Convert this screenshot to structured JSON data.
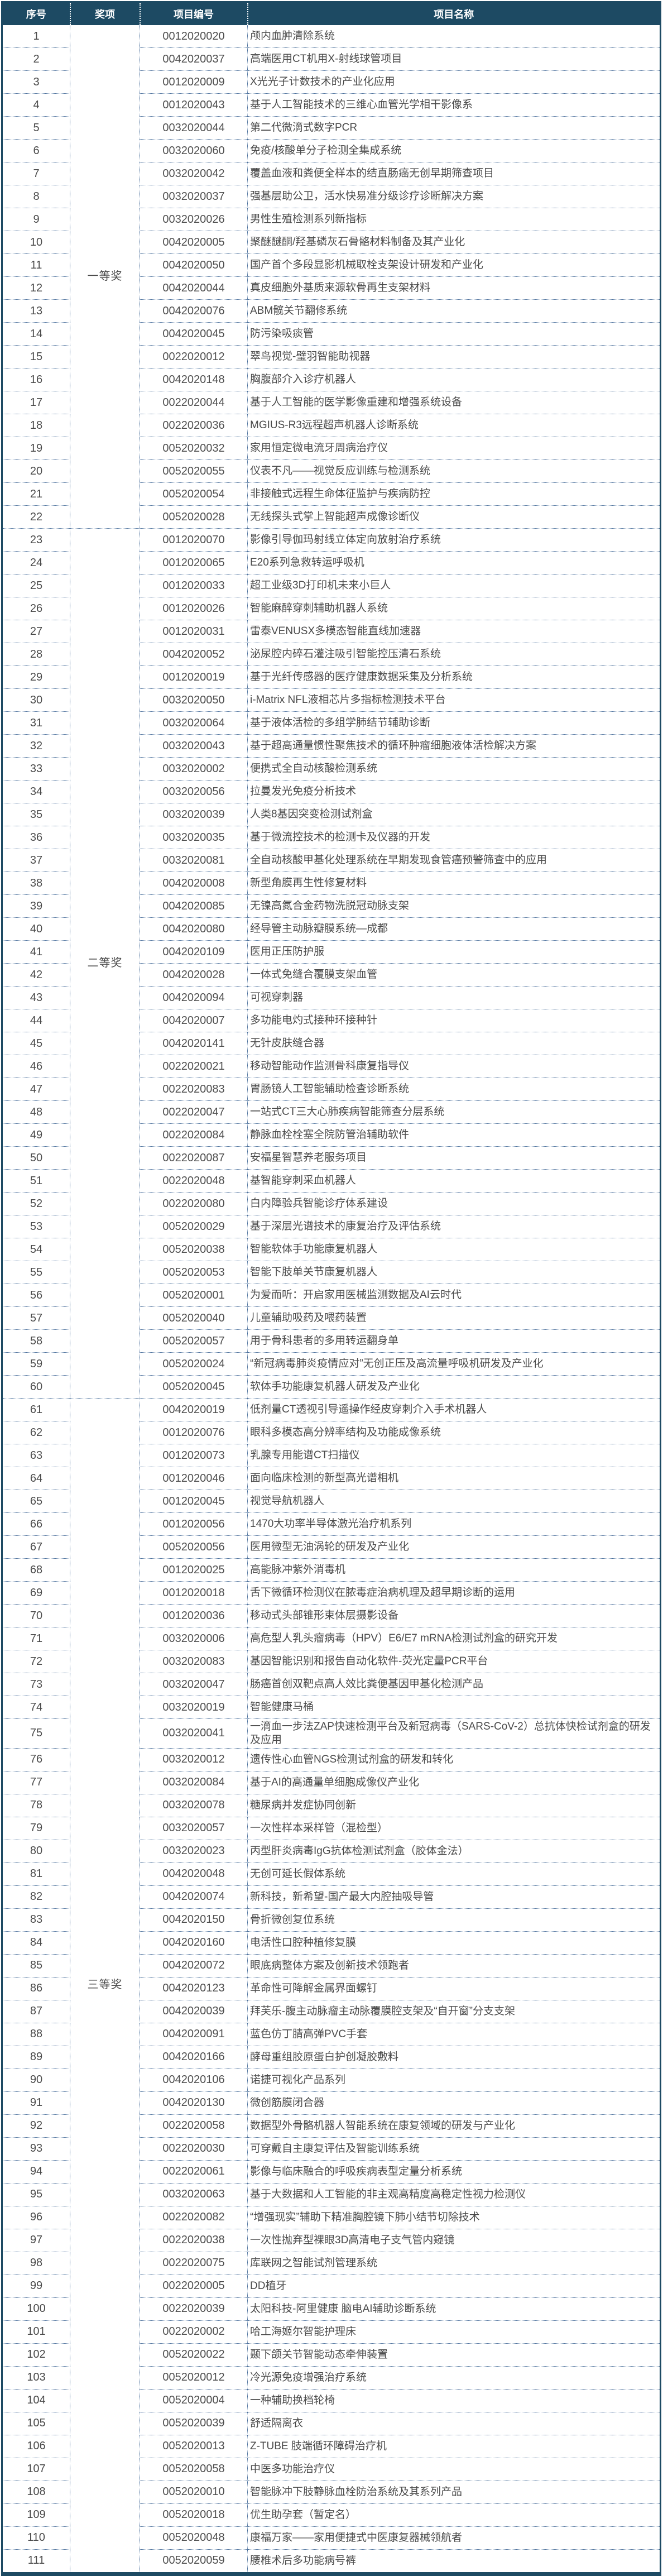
{
  "table": {
    "columns": [
      "序号",
      "奖项",
      "项目编号",
      "项目名称"
    ],
    "groups": [
      {
        "award": "一等奖",
        "rows": [
          {
            "no": "1",
            "code": "0012020020",
            "name": "颅内血肿清除系统"
          },
          {
            "no": "2",
            "code": "0042020037",
            "name": "高端医用CT机用X-射线球管项目"
          },
          {
            "no": "3",
            "code": "0012020009",
            "name": "X光光子计数技术的产业化应用"
          },
          {
            "no": "4",
            "code": "0012020043",
            "name": "基于人工智能技术的三维心血管光学相干影像系"
          },
          {
            "no": "5",
            "code": "0032020044",
            "name": "第二代微滴式数字PCR"
          },
          {
            "no": "6",
            "code": "0032020060",
            "name": "免疫/核酸单分子检测全集成系统"
          },
          {
            "no": "7",
            "code": "0032020042",
            "name": "覆盖血液和粪便全样本的结直肠癌无创早期筛查项目"
          },
          {
            "no": "8",
            "code": "0032020037",
            "name": "强基层助公卫，活水快易准分级诊疗诊断解决方案"
          },
          {
            "no": "9",
            "code": "0032020026",
            "name": "男性生殖检测系列新指标"
          },
          {
            "no": "10",
            "code": "0042020005",
            "name": "聚醚醚酮/羟基磷灰石骨骼材料制备及其产业化"
          },
          {
            "no": "11",
            "code": "0042020050",
            "name": "国产首个多段显影机械取栓支架设计研发和产业化"
          },
          {
            "no": "12",
            "code": "0042020044",
            "name": "真皮细胞外基质来源软骨再生支架材料"
          },
          {
            "no": "13",
            "code": "0042020076",
            "name": "ABM髋关节翻修系统"
          },
          {
            "no": "14",
            "code": "0042020045",
            "name": "防污染吸痰管"
          },
          {
            "no": "15",
            "code": "0022020012",
            "name": "翠鸟视觉-璧羽智能助视器"
          },
          {
            "no": "16",
            "code": "0042020148",
            "name": "胸腹部介入诊疗机器人"
          },
          {
            "no": "17",
            "code": "0022020044",
            "name": "基于人工智能的医学影像重建和增强系统设备"
          },
          {
            "no": "18",
            "code": "0022020036",
            "name": "MGIUS-R3远程超声机器人诊断系统"
          },
          {
            "no": "19",
            "code": "0052020032",
            "name": "家用恒定微电流牙周病治疗仪"
          },
          {
            "no": "20",
            "code": "0052020055",
            "name": "仪表不凡——视觉反应训练与检测系统"
          },
          {
            "no": "21",
            "code": "0052020054",
            "name": "非接触式远程生命体征监护与疾病防控"
          },
          {
            "no": "22",
            "code": "0052020028",
            "name": "无线探头式掌上智能超声成像诊断仪"
          }
        ]
      },
      {
        "award": "二等奖",
        "rows": [
          {
            "no": "23",
            "code": "0012020070",
            "name": "影像引导伽玛射线立体定向放射治疗系统"
          },
          {
            "no": "24",
            "code": "0012020065",
            "name": "E20系列急救转运呼吸机"
          },
          {
            "no": "25",
            "code": "0012020033",
            "name": "超工业级3D打印机未来小巨人"
          },
          {
            "no": "26",
            "code": "0012020026",
            "name": "智能麻醉穿刺辅助机器人系统"
          },
          {
            "no": "27",
            "code": "0012020031",
            "name": "雷泰VENUSX多模态智能直线加速器"
          },
          {
            "no": "28",
            "code": "0042020052",
            "name": "泌尿腔内碎石灌注吸引智能控压清石系统"
          },
          {
            "no": "29",
            "code": "0012020019",
            "name": "基于光纤传感器的医疗健康数据采集及分析系统"
          },
          {
            "no": "30",
            "code": "0032020050",
            "name": "i-Matrix NFL液相芯片多指标检测技术平台"
          },
          {
            "no": "31",
            "code": "0032020064",
            "name": "基于液体活检的多组学肺结节辅助诊断"
          },
          {
            "no": "32",
            "code": "0032020043",
            "name": "基于超高通量惯性聚焦技术的循环肿瘤细胞液体活检解决方案"
          },
          {
            "no": "33",
            "code": "0032020002",
            "name": "便携式全自动核酸检测系统"
          },
          {
            "no": "34",
            "code": "0032020056",
            "name": "拉曼发光免疫分析技术"
          },
          {
            "no": "35",
            "code": "0032020039",
            "name": "人类8基因突变检测试剂盒"
          },
          {
            "no": "36",
            "code": "0032020035",
            "name": "基于微流控技术的检测卡及仪器的开发"
          },
          {
            "no": "37",
            "code": "0032020081",
            "name": "全自动核酸甲基化处理系统在早期发现食管癌预警筛查中的应用"
          },
          {
            "no": "38",
            "code": "0042020008",
            "name": "新型角膜再生性修复材料"
          },
          {
            "no": "39",
            "code": "0042020085",
            "name": "无镍高氮合金药物洗脱冠动脉支架"
          },
          {
            "no": "40",
            "code": "0042020080",
            "name": "经导管主动脉瓣膜系统—成都"
          },
          {
            "no": "41",
            "code": "0042020109",
            "name": "医用正压防护服"
          },
          {
            "no": "42",
            "code": "0042020028",
            "name": "一体式免缝合覆膜支架血管"
          },
          {
            "no": "43",
            "code": "0042020094",
            "name": "可视穿刺器"
          },
          {
            "no": "44",
            "code": "0042020007",
            "name": "多功能电灼式接种环接种针"
          },
          {
            "no": "45",
            "code": "0042020141",
            "name": "无针皮肤缝合器"
          },
          {
            "no": "46",
            "code": "0022020021",
            "name": "移动智能动作监测骨科康复指导仪"
          },
          {
            "no": "47",
            "code": "0022020083",
            "name": "胃肠镜人工智能辅助检查诊断系统"
          },
          {
            "no": "48",
            "code": "0022020047",
            "name": "一站式CT三大心肺疾病智能筛查分层系统"
          },
          {
            "no": "49",
            "code": "0022020084",
            "name": "静脉血栓栓塞全院防管治辅助软件"
          },
          {
            "no": "50",
            "code": "0022020087",
            "name": "安福星智慧养老服务项目"
          },
          {
            "no": "51",
            "code": "0022020048",
            "name": "基智能穿刺采血机器人"
          },
          {
            "no": "52",
            "code": "0022020080",
            "name": "白内障验兵智能诊疗体系建设"
          },
          {
            "no": "53",
            "code": "0052020029",
            "name": "基于深层光谱技术的康复治疗及评估系统"
          },
          {
            "no": "54",
            "code": "0052020038",
            "name": "智能软体手功能康复机器人"
          },
          {
            "no": "55",
            "code": "0052020053",
            "name": "智能下肢单关节康复机器人"
          },
          {
            "no": "56",
            "code": "0052020001",
            "name": "为爱而听：开启家用医械监测数据及AI云时代"
          },
          {
            "no": "57",
            "code": "0052020040",
            "name": "儿童辅助吸药及喂药装置"
          },
          {
            "no": "58",
            "code": "0052020057",
            "name": "用于骨科患者的多用转运翻身单"
          },
          {
            "no": "59",
            "code": "0052020024",
            "name": "“新冠病毒肺炎疫情应对”无创正压及高流量呼吸机研发及产业化"
          },
          {
            "no": "60",
            "code": "0052020045",
            "name": "软体手功能康复机器人研发及产业化"
          }
        ]
      },
      {
        "award": "三等奖",
        "rows": [
          {
            "no": "61",
            "code": "0042020019",
            "name": "低剂量CT透视引导遥操作经皮穿刺介入手术机器人"
          },
          {
            "no": "62",
            "code": "0012020076",
            "name": "眼科多模态高分辨率结构及功能成像系统"
          },
          {
            "no": "63",
            "code": "0012020073",
            "name": "乳腺专用能谱CT扫描仪"
          },
          {
            "no": "64",
            "code": "0012020046",
            "name": "面向临床检测的新型高光谱相机"
          },
          {
            "no": "65",
            "code": "0012020045",
            "name": "视觉导航机器人"
          },
          {
            "no": "66",
            "code": "0012020056",
            "name": "1470大功率半导体激光治疗机系列"
          },
          {
            "no": "67",
            "code": "0052020056",
            "name": "医用微型无油涡轮的研发及产业化"
          },
          {
            "no": "68",
            "code": "0012020025",
            "name": "高能脉冲紫外消毒机"
          },
          {
            "no": "69",
            "code": "0012020018",
            "name": "舌下微循环检测仪在脓毒症治病机理及超早期诊断的运用"
          },
          {
            "no": "70",
            "code": "0012020036",
            "name": "移动式头部锥形束体层摄影设备"
          },
          {
            "no": "71",
            "code": "0032020006",
            "name": "高危型人乳头瘤病毒（HPV）E6/E7 mRNA检测试剂盒的研究开发"
          },
          {
            "no": "72",
            "code": "0032020083",
            "name": "基因智能识别和报告自动化软件-荧光定量PCR平台"
          },
          {
            "no": "73",
            "code": "0032020047",
            "name": "肠癌首创双靶点高人效比粪便基因甲基化检测产品"
          },
          {
            "no": "74",
            "code": "0032020019",
            "name": "智能健康马桶"
          },
          {
            "no": "75",
            "code": "0032020041",
            "name": "一滴血一步法ZAP快速检测平台及新冠病毒（SARS-CoV-2）总抗体快检试剂盒的研发及应用"
          },
          {
            "no": "76",
            "code": "0032020012",
            "name": "遗传性心血管NGS检测试剂盒的研发和转化"
          },
          {
            "no": "77",
            "code": "0032020084",
            "name": "基于AI的高通量单细胞成像仪产业化"
          },
          {
            "no": "78",
            "code": "0032020078",
            "name": "糖尿病并发症协同创新"
          },
          {
            "no": "79",
            "code": "0032020057",
            "name": "一次性样本采样管（混检型）"
          },
          {
            "no": "80",
            "code": "0032020023",
            "name": "丙型肝炎病毒IgG抗体检测试剂盒（胶体金法）"
          },
          {
            "no": "81",
            "code": "0042020048",
            "name": "无创可延长假体系统"
          },
          {
            "no": "82",
            "code": "0042020074",
            "name": "新科技，新希望-国产最大内腔抽吸导管"
          },
          {
            "no": "83",
            "code": "0042020150",
            "name": "骨折微创复位系统"
          },
          {
            "no": "84",
            "code": "0042020160",
            "name": "电活性口腔种植修复膜"
          },
          {
            "no": "85",
            "code": "0042020072",
            "name": "眼底病整体方案及创新技术领跑者"
          },
          {
            "no": "86",
            "code": "0042020123",
            "name": "革命性可降解金属界面螺钉"
          },
          {
            "no": "87",
            "code": "0042020039",
            "name": "拜芙乐-腹主动脉瘤主动脉覆膜腔支架及“自开窗”分支支架"
          },
          {
            "no": "88",
            "code": "0042020091",
            "name": "蓝色仿丁腈高弹PVC手套"
          },
          {
            "no": "89",
            "code": "0042020166",
            "name": "酵母重组胶原蛋白护创凝胶敷料"
          },
          {
            "no": "90",
            "code": "0042020106",
            "name": "诺捷可视化产品系列"
          },
          {
            "no": "91",
            "code": "0042020130",
            "name": "微创筋膜闭合器"
          },
          {
            "no": "92",
            "code": "0022020058",
            "name": "数据型外骨骼机器人智能系统在康复领域的研发与产业化"
          },
          {
            "no": "93",
            "code": "0022020030",
            "name": "可穿戴自主康复评估及智能训练系统"
          },
          {
            "no": "94",
            "code": "0022020061",
            "name": "影像与临床融合的呼吸疾病表型定量分析系统"
          },
          {
            "no": "95",
            "code": "0032020063",
            "name": "基于大数据和人工智能的非主观高精度高稳定性视力检测仪"
          },
          {
            "no": "96",
            "code": "0022020082",
            "name": "“增强现实”辅助下精准胸腔镜下肺小结节切除技术"
          },
          {
            "no": "97",
            "code": "0022020038",
            "name": "一次性抛弃型裸眼3D高清电子支气管内窥镜"
          },
          {
            "no": "98",
            "code": "0022020075",
            "name": "库联网之智能试剂管理系统"
          },
          {
            "no": "99",
            "code": "0022020005",
            "name": "DD植牙"
          },
          {
            "no": "100",
            "code": "0022020039",
            "name": "太阳科技-阿里健康 脑电AI辅助诊断系统"
          },
          {
            "no": "101",
            "code": "0022020002",
            "name": "哈工海姬尔智能护理床"
          },
          {
            "no": "102",
            "code": "0052020022",
            "name": "颞下颌关节智能动态牵伸装置"
          },
          {
            "no": "103",
            "code": "0052020012",
            "name": "冷光源免疫增强治疗系统"
          },
          {
            "no": "104",
            "code": "0052020004",
            "name": "一种辅助换档轮椅"
          },
          {
            "no": "105",
            "code": "0052020039",
            "name": "舒适隔离衣"
          },
          {
            "no": "106",
            "code": "0052020013",
            "name": "Z-TUBE 肢端循环障碍治疗机"
          },
          {
            "no": "107",
            "code": "0052020058",
            "name": "中医多功能治疗仪"
          },
          {
            "no": "108",
            "code": "0052020010",
            "name": "智能脉冲下肢静脉血栓防治系统及其系列产品"
          },
          {
            "no": "109",
            "code": "0052020018",
            "name": "优生助孕套（暂定名）"
          },
          {
            "no": "110",
            "code": "0052020048",
            "name": "康福万家——家用便捷式中医康复器械领航者"
          },
          {
            "no": "111",
            "code": "0052020059",
            "name": "腰椎术后多功能病号裤"
          }
        ]
      }
    ]
  },
  "colors": {
    "header_bg": "#1d4a63",
    "header_text": "#ffffff",
    "outer_border": "#1d4a63",
    "grid_dotted_line": "#4a6f9b",
    "body_text": "#4a4a4a"
  }
}
